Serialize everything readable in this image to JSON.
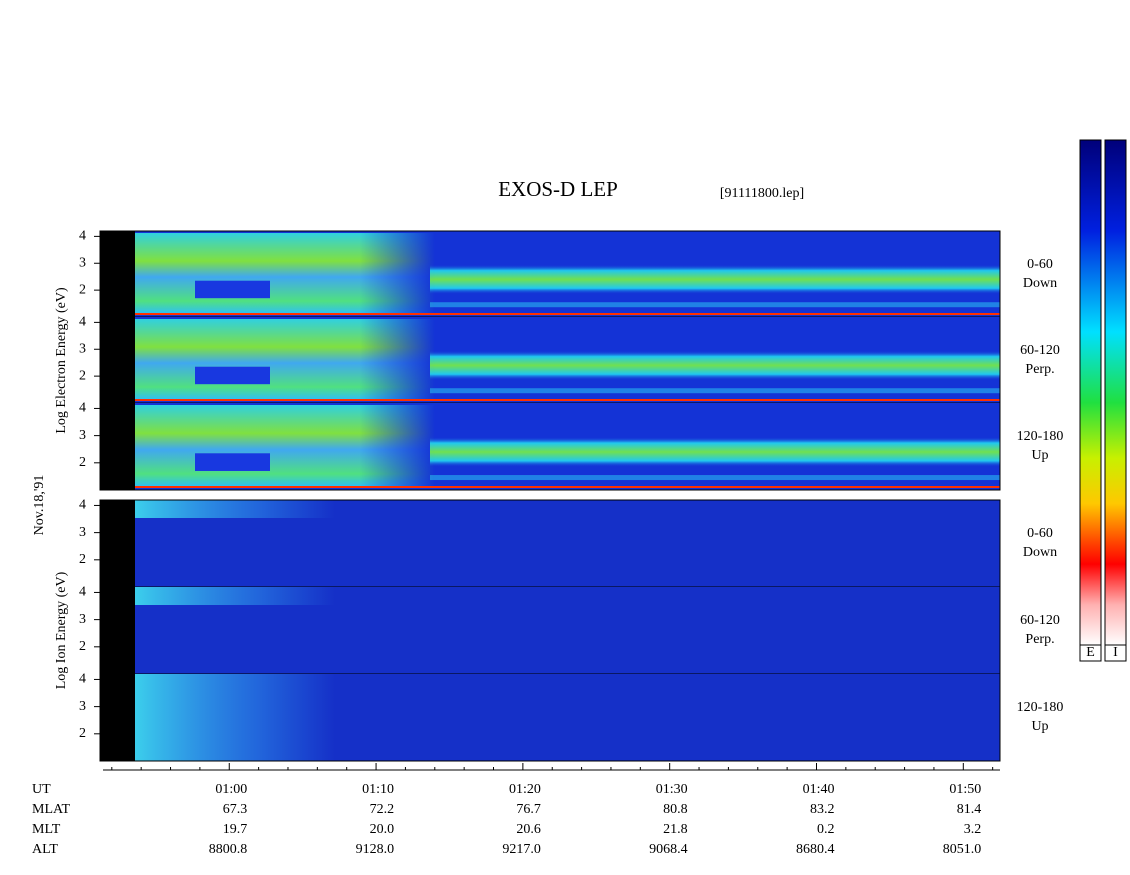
{
  "chart_data": {
    "type": "spectrogram",
    "title": "EXOS-D LEP",
    "subtitle": "[91111800.lep]",
    "date_label": "Nov.18,'91",
    "ylim": [
      1,
      4.2
    ],
    "yticks": [
      2,
      3,
      4
    ],
    "groups": [
      {
        "ylabel": "Log Electron Energy (eV)",
        "panels": [
          {
            "label": "0-60",
            "sublabel": "Down"
          },
          {
            "label": "60-120",
            "sublabel": "Perp."
          },
          {
            "label": "120-180",
            "sublabel": "Up"
          }
        ]
      },
      {
        "ylabel": "Log Ion Energy (eV)",
        "panels": [
          {
            "label": "0-60",
            "sublabel": "Down"
          },
          {
            "label": "60-120",
            "sublabel": "Perp."
          },
          {
            "label": "120-180",
            "sublabel": "Up"
          }
        ]
      }
    ],
    "xlim": [
      51.4,
      112.5
    ],
    "xticks": [
      {
        "value": 60,
        "label": "01:00"
      },
      {
        "value": 70,
        "label": "01:10"
      },
      {
        "value": 80,
        "label": "01:20"
      },
      {
        "value": 90,
        "label": "01:30"
      },
      {
        "value": 100,
        "label": "01:40"
      },
      {
        "value": 110,
        "label": "01:50"
      }
    ],
    "xminor": [
      52,
      54,
      56,
      58,
      62,
      64,
      66,
      68,
      72,
      74,
      76,
      78,
      82,
      84,
      86,
      88,
      92,
      94,
      96,
      98,
      102,
      104,
      106,
      108,
      112
    ],
    "x_label": "UT",
    "orbit_rows": [
      {
        "name": "MLAT",
        "values": [
          "67.3",
          "72.2",
          "76.7",
          "80.8",
          "83.2",
          "81.4"
        ]
      },
      {
        "name": "MLT",
        "values": [
          "19.7",
          "20.0",
          "20.6",
          "21.8",
          "0.2",
          "3.2"
        ]
      },
      {
        "name": "ALT",
        "values": [
          "8800.8",
          "9128.0",
          "9217.0",
          "9068.4",
          "8680.4",
          "8051.0"
        ]
      }
    ],
    "colorbar_labels": [
      "E",
      "I"
    ]
  }
}
